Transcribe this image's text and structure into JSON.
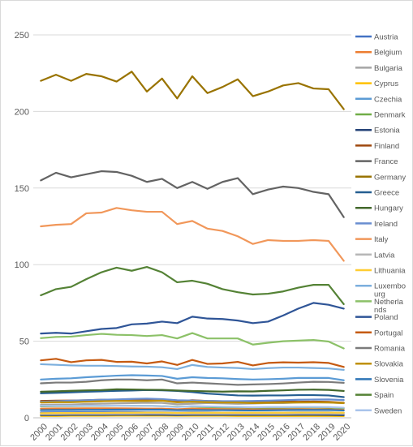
{
  "chart_data": {
    "type": "line",
    "title": "",
    "xlabel": "",
    "ylabel": "",
    "x": [
      "2000",
      "2001",
      "2002",
      "2003",
      "2004",
      "2005",
      "2006",
      "2007",
      "2008",
      "2009",
      "2010",
      "2011",
      "2012",
      "2013",
      "2014",
      "2015",
      "2016",
      "2017",
      "2018",
      "2019",
      "2020"
    ],
    "ylim": [
      0,
      250
    ],
    "yticks": [
      0,
      50,
      100,
      150,
      200,
      250
    ],
    "grid": true,
    "legend_position": "right",
    "series": [
      {
        "name": "Austria",
        "color": "#4472C4",
        "values": [
          3.5,
          3.6,
          3.6,
          3.7,
          3.7,
          3.8,
          3.7,
          3.6,
          3.6,
          3.4,
          3.6,
          3.5,
          3.4,
          3.4,
          3.3,
          3.4,
          3.4,
          3.5,
          3.5,
          3.5,
          3.2
        ]
      },
      {
        "name": "Belgium",
        "color": "#ED7D31",
        "values": [
          6,
          6.1,
          6.1,
          6.2,
          6.2,
          6.2,
          6.1,
          6.0,
          6.0,
          5.6,
          6.0,
          5.8,
          5.7,
          5.7,
          5.5,
          5.6,
          5.6,
          5.7,
          5.6,
          5.6,
          5.2
        ]
      },
      {
        "name": "Bulgaria",
        "color": "#A5A5A5",
        "values": [
          8.5,
          8.6,
          8.6,
          9.0,
          9.2,
          9.4,
          9.6,
          9.8,
          9.7,
          8.8,
          9.2,
          9.6,
          9.4,
          9.1,
          9.3,
          9.6,
          9.6,
          10.0,
          10.0,
          10.0,
          9.5
        ]
      },
      {
        "name": "Cyprus",
        "color": "#FFC000",
        "values": [
          1.2,
          1.2,
          1.3,
          1.3,
          1.3,
          1.4,
          1.4,
          1.4,
          1.4,
          1.3,
          1.3,
          1.3,
          1.3,
          1.2,
          1.2,
          1.2,
          1.2,
          1.2,
          1.2,
          1.2,
          1.1
        ]
      },
      {
        "name": "Czechia",
        "color": "#5B9BD5",
        "values": [
          25,
          25.5,
          25.8,
          26.5,
          27,
          27.5,
          27.8,
          27.6,
          27.3,
          25.5,
          26.5,
          26,
          25.8,
          25.3,
          25,
          25.2,
          25.5,
          26,
          26,
          26,
          24.5
        ]
      },
      {
        "name": "Denmark",
        "color": "#70AD47",
        "values": [
          7.5,
          7.6,
          7.6,
          7.8,
          7.8,
          7.9,
          7.9,
          7.8,
          7.6,
          7.2,
          7.4,
          7.0,
          6.8,
          6.8,
          6.6,
          6.6,
          6.7,
          6.8,
          6.8,
          6.7,
          6.3
        ]
      },
      {
        "name": "Estonia",
        "color": "#264478",
        "values": [
          1.8,
          1.8,
          1.9,
          1.9,
          1.9,
          2.0,
          2.0,
          2.0,
          2.0,
          1.8,
          1.9,
          1.9,
          1.9,
          1.9,
          1.9,
          1.9,
          1.9,
          2.0,
          2.0,
          1.9,
          1.7
        ]
      },
      {
        "name": "Finland",
        "color": "#9E480E",
        "values": [
          11,
          11.2,
          11.3,
          11.5,
          11.8,
          11.8,
          12,
          11.8,
          11.4,
          10.8,
          11.5,
          11.0,
          10.8,
          10.6,
          10.4,
          10.3,
          10.6,
          10.5,
          10.6,
          10.4,
          9.8
        ]
      },
      {
        "name": "France",
        "color": "#636363",
        "values": [
          155,
          160,
          157,
          159,
          161,
          160.5,
          158,
          154,
          156,
          150,
          154,
          149.5,
          154,
          156.5,
          146,
          149,
          151,
          150,
          147.5,
          146,
          131
        ]
      },
      {
        "name": "Germany",
        "color": "#997300",
        "values": [
          220,
          224,
          220,
          224.5,
          223,
          219.5,
          226,
          213,
          221.5,
          208.5,
          223,
          212,
          216,
          221,
          210,
          213,
          217,
          218.5,
          215,
          214.5,
          201.5
        ]
      },
      {
        "name": "Greece",
        "color": "#255E91",
        "values": [
          16,
          16.3,
          16.6,
          17,
          17.3,
          17.6,
          17.8,
          18.1,
          17.9,
          17.5,
          16.8,
          15.8,
          15.2,
          14.6,
          14.5,
          14.6,
          14.6,
          14.8,
          14.8,
          14.6,
          13.5
        ]
      },
      {
        "name": "Hungary",
        "color": "#43682B",
        "values": [
          17,
          17.3,
          17.6,
          17.9,
          18.1,
          18.6,
          18.5,
          18.3,
          18.2,
          17.8,
          17.5,
          17.3,
          17.1,
          17.3,
          17.2,
          17.6,
          17.9,
          18.3,
          18.4,
          18.2,
          17.5
        ]
      },
      {
        "name": "Ireland",
        "color": "#698ED0",
        "values": [
          10.5,
          10.8,
          11.2,
          11.5,
          11.8,
          12.0,
          12.3,
          12.5,
          12.2,
          11.5,
          11.3,
          11.0,
          10.9,
          10.9,
          11.0,
          11.2,
          11.5,
          11.8,
          11.9,
          12.0,
          11.6
        ]
      },
      {
        "name": "Italy",
        "color": "#F1975A",
        "values": [
          125,
          126,
          126.5,
          133.5,
          134,
          137,
          135.5,
          134.5,
          134.5,
          126.5,
          128.5,
          123.5,
          122,
          118.5,
          113.5,
          116,
          115.5,
          115.5,
          116,
          115.5,
          102.5
        ]
      },
      {
        "name": "Latvia",
        "color": "#B7B7B7",
        "values": [
          2.4,
          2.4,
          2.5,
          2.5,
          2.5,
          2.6,
          2.6,
          2.7,
          2.7,
          2.5,
          2.6,
          2.6,
          2.6,
          2.6,
          2.6,
          2.6,
          2.6,
          2.7,
          2.7,
          2.7,
          2.6
        ]
      },
      {
        "name": "Lithuania",
        "color": "#FFCD33",
        "values": [
          3.0,
          3.1,
          3.1,
          3.2,
          3.2,
          3.3,
          3.3,
          3.4,
          3.4,
          3.2,
          3.3,
          3.3,
          3.3,
          3.3,
          3.3,
          3.3,
          3.3,
          3.4,
          3.4,
          3.4,
          3.3
        ]
      },
      {
        "name": "Luxembourg",
        "color": "#7CAFDD",
        "values": [
          35,
          34.6,
          34.2,
          34,
          34,
          33.8,
          33.5,
          33.4,
          33.0,
          31.8,
          34.5,
          33.2,
          32.8,
          32.5,
          31.8,
          32.4,
          32.8,
          32.8,
          32.5,
          32.2,
          31.3
        ]
      },
      {
        "name": "Netherlands",
        "color": "#8CC168",
        "values": [
          52,
          52.8,
          53,
          54,
          54.8,
          54.2,
          54,
          53.4,
          54,
          51.8,
          55.3,
          51.8,
          51.8,
          51.8,
          47.8,
          49,
          50,
          50.4,
          50.8,
          49.8,
          45.3
        ]
      },
      {
        "name": "Poland",
        "color": "#2F5597",
        "values": [
          55,
          55.5,
          55,
          56.5,
          58,
          58.6,
          61,
          61.5,
          62.8,
          61.8,
          66,
          64.8,
          64.5,
          63.5,
          61.8,
          62.8,
          66.8,
          71.3,
          75,
          73.8,
          71.3
        ]
      },
      {
        "name": "Portugal",
        "color": "#C55A11",
        "values": [
          37.5,
          38.5,
          36.3,
          37.5,
          37.8,
          36.5,
          36.6,
          35.5,
          36.8,
          34.5,
          37.8,
          35.2,
          35.5,
          36.5,
          34.2,
          35.8,
          36.2,
          36,
          36.3,
          35.8,
          33.2
        ]
      },
      {
        "name": "Romania",
        "color": "#7B7B7B",
        "values": [
          22.5,
          23,
          23,
          23.5,
          24.5,
          25,
          25,
          24.5,
          25,
          22.5,
          23,
          22.5,
          22,
          21.5,
          21.8,
          22,
          22.4,
          23,
          23.5,
          23.4,
          22.8
        ]
      },
      {
        "name": "Slovakia",
        "color": "#BF9000",
        "values": [
          10,
          10.2,
          10.2,
          10.5,
          10.8,
          11,
          11,
          11,
          11.2,
          10.1,
          10.5,
          10.2,
          10,
          10,
          9.6,
          9.8,
          9.9,
          10,
          10.1,
          10,
          9.6
        ]
      },
      {
        "name": "Slovenia",
        "color": "#2E75B6",
        "values": [
          5,
          5.1,
          5.1,
          5.2,
          5.2,
          5.3,
          5.3,
          5.3,
          5.3,
          5.0,
          5.1,
          5.0,
          5.0,
          4.9,
          4.8,
          4.9,
          5.0,
          5.1,
          5.1,
          5.1,
          4.8
        ]
      },
      {
        "name": "Spain",
        "color": "#548235",
        "values": [
          80,
          84,
          85.5,
          90.5,
          95,
          98,
          96,
          98.5,
          95,
          88.5,
          89.5,
          87.5,
          84,
          82,
          80.5,
          81,
          82.5,
          85,
          86.8,
          86.8,
          74.2
        ]
      },
      {
        "name": "Sweden",
        "color": "#A9C4EB",
        "values": [
          7.8,
          7.8,
          7.8,
          7.9,
          7.9,
          7.9,
          7.8,
          7.8,
          7.6,
          7.0,
          7.6,
          7.4,
          7.2,
          7.1,
          6.9,
          7.0,
          7.0,
          7.1,
          7.1,
          7.0,
          6.6
        ]
      }
    ],
    "legend_labels": [
      [
        "Austria"
      ],
      [
        "Belgium"
      ],
      [
        "Bulgaria"
      ],
      [
        "Cyprus"
      ],
      [
        "Czechia"
      ],
      [
        "Denmark"
      ],
      [
        "Estonia"
      ],
      [
        "Finland"
      ],
      [
        "France"
      ],
      [
        "Germany"
      ],
      [
        "Greece"
      ],
      [
        "Hungary"
      ],
      [
        "Ireland"
      ],
      [
        "Italy"
      ],
      [
        "Latvia"
      ],
      [
        "Lithuania"
      ],
      [
        "Luxembo",
        "urg"
      ],
      [
        "Netherla",
        "nds"
      ],
      [
        "Poland"
      ],
      [
        "Portugal"
      ],
      [
        "Romania"
      ],
      [
        "Slovakia"
      ],
      [
        "Slovenia"
      ],
      [
        "Spain"
      ],
      [
        "Sweden"
      ]
    ]
  }
}
